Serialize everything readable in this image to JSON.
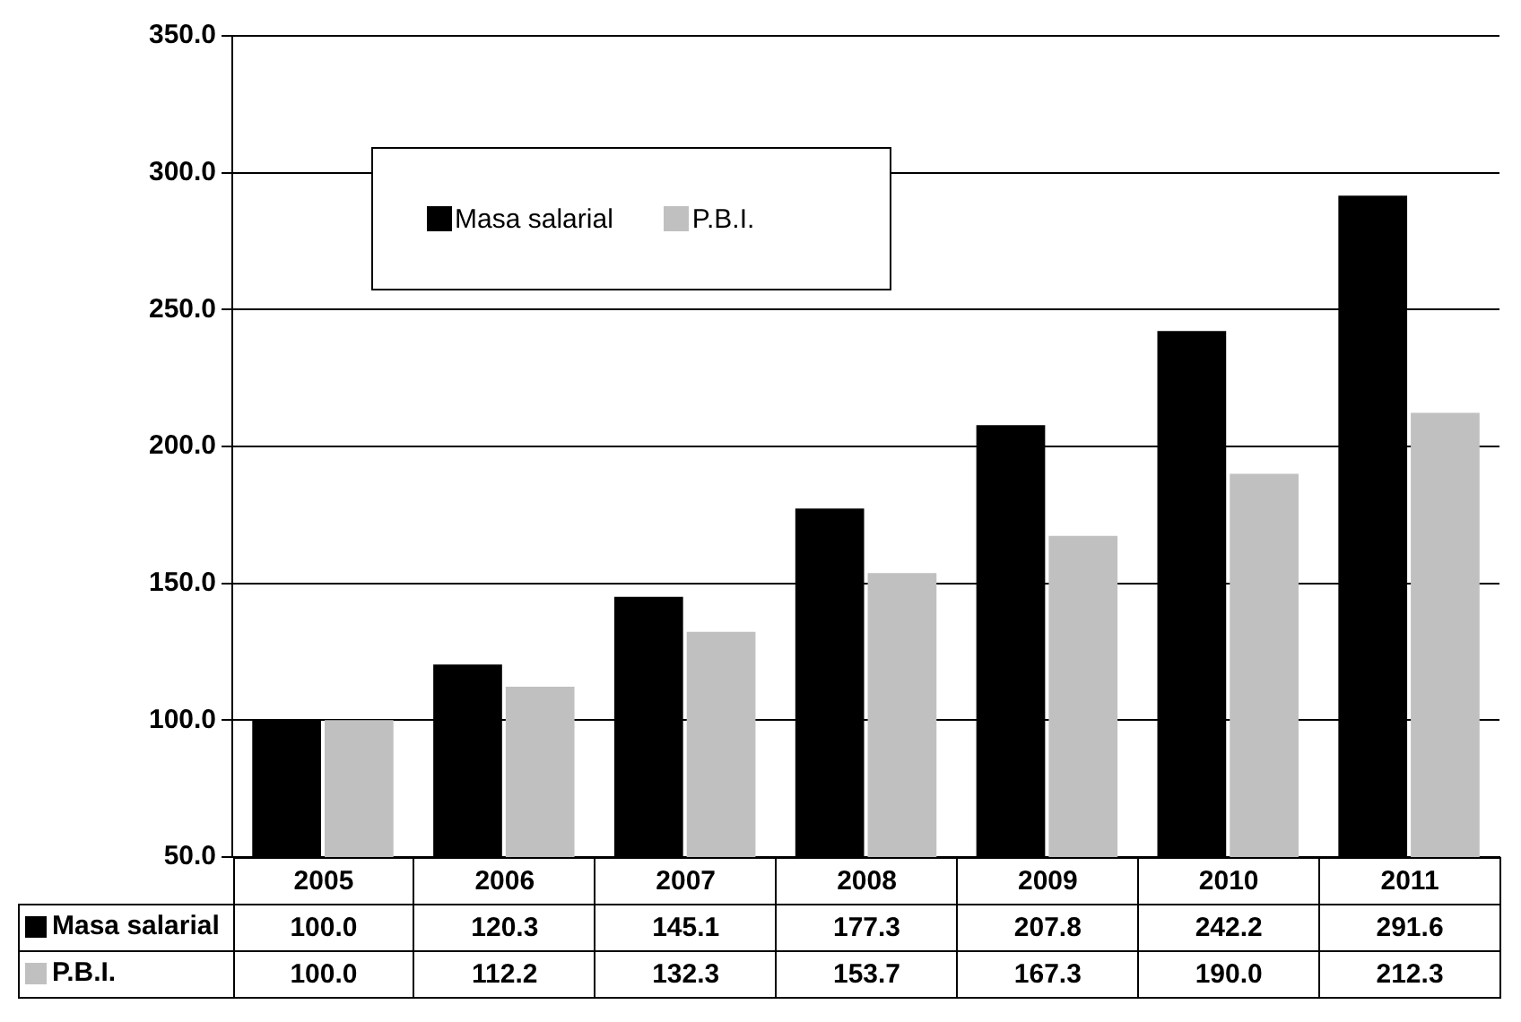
{
  "chart_data": {
    "type": "bar",
    "categories": [
      "2005",
      "2006",
      "2007",
      "2008",
      "2009",
      "2010",
      "2011"
    ],
    "series": [
      {
        "name": "Masa salarial",
        "color": "#000000",
        "values": [
          100.0,
          120.3,
          145.1,
          177.3,
          207.8,
          242.2,
          291.6
        ],
        "value_labels": [
          "100.0",
          "120.3",
          "145.1",
          "177.3",
          "207.8",
          "242.2",
          "291.6"
        ]
      },
      {
        "name": "P.B.I.",
        "color": "#c0c0c0",
        "values": [
          100.0,
          112.2,
          132.3,
          153.7,
          167.3,
          190.0,
          212.3
        ],
        "value_labels": [
          "100.0",
          "112.2",
          "132.3",
          "153.7",
          "167.3",
          "190.0",
          "212.3"
        ]
      }
    ],
    "ylim": [
      50,
      350
    ],
    "yticks": [
      {
        "value": 50,
        "label": "50.0"
      },
      {
        "value": 100,
        "label": "100.0"
      },
      {
        "value": 150,
        "label": "150.0"
      },
      {
        "value": 200,
        "label": "200.0"
      },
      {
        "value": 250,
        "label": "250.0"
      },
      {
        "value": 300,
        "label": "300.0"
      },
      {
        "value": 350,
        "label": "350.0"
      }
    ],
    "grid": "y",
    "legend": "top left"
  }
}
